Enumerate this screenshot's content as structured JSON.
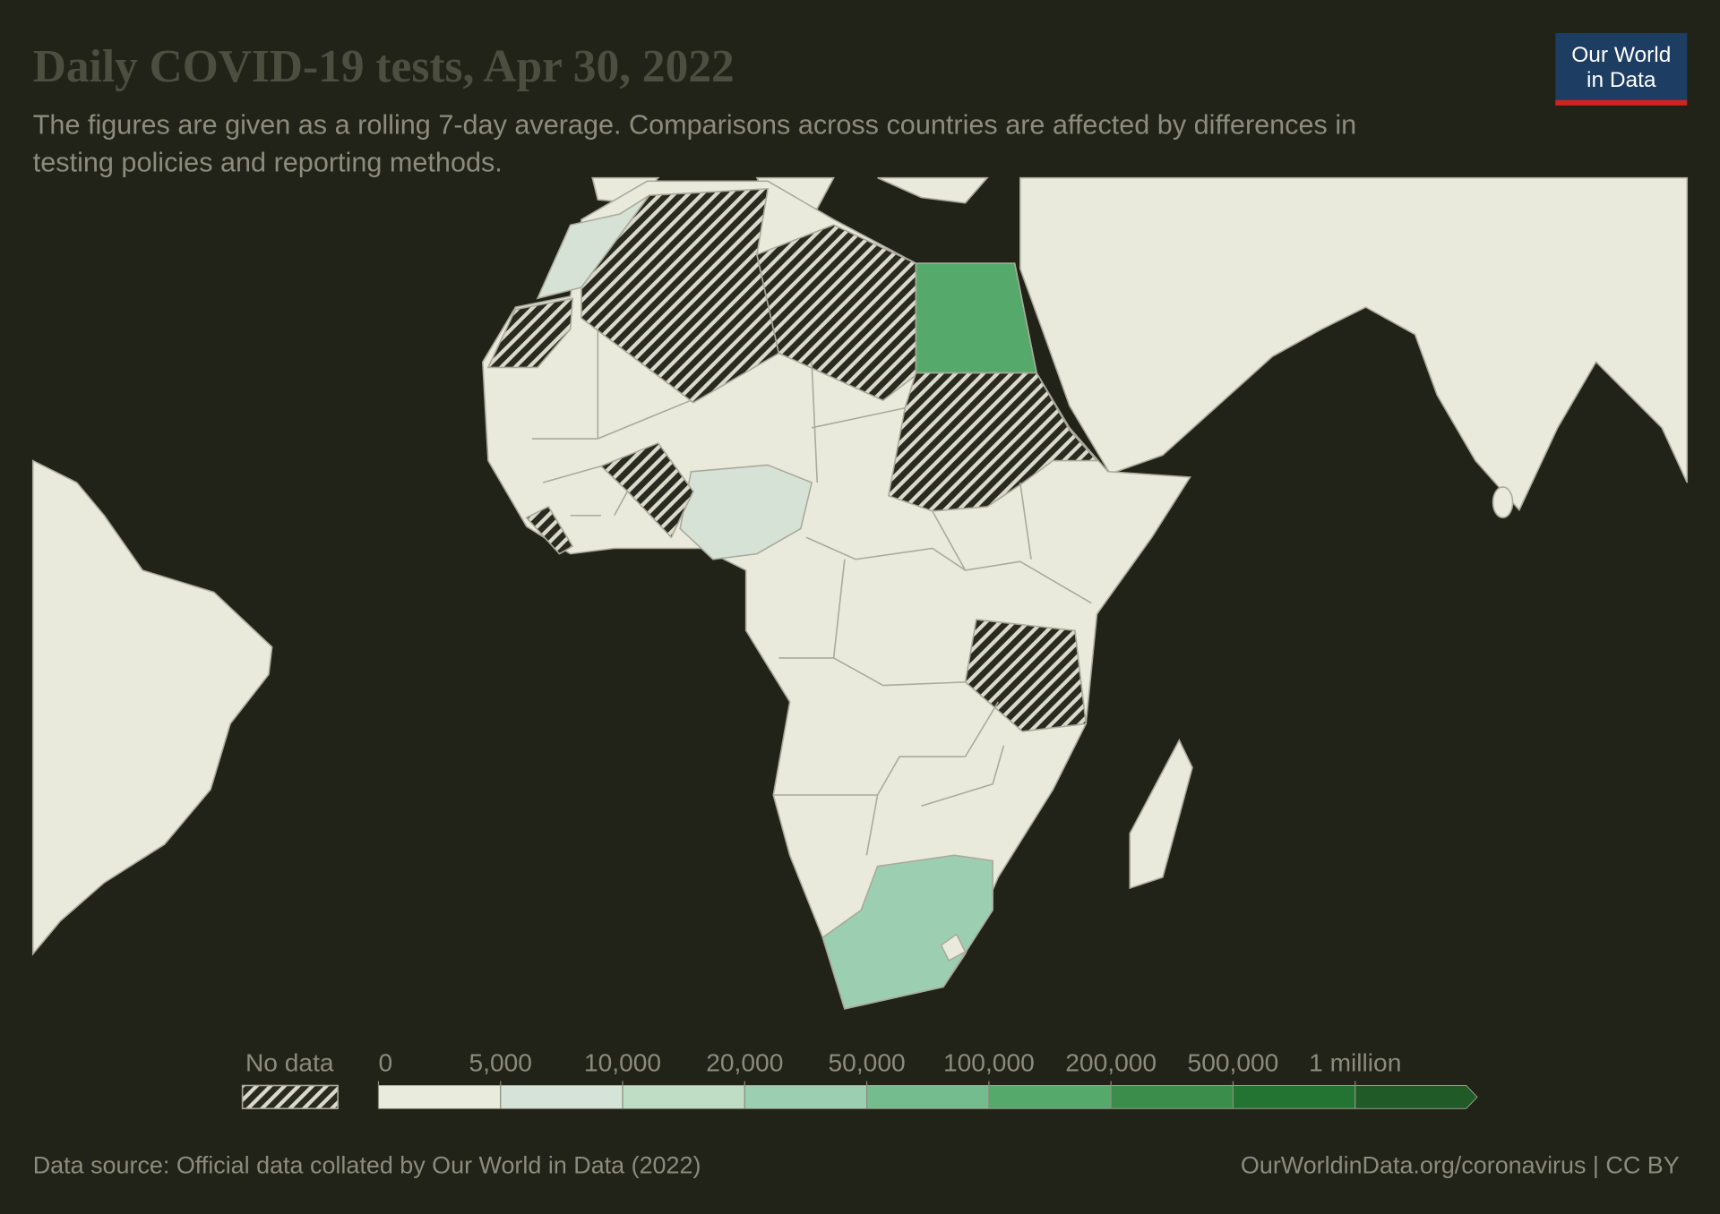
{
  "header": {
    "title": "Daily COVID-19 tests, Apr 30, 2022",
    "subtitle": [
      "The figures are given as a rolling 7-day average. Comparisons across countries are affected by differences in",
      "testing policies and reporting methods."
    ]
  },
  "logo": [
    "Our World",
    "in Data"
  ],
  "legend": {
    "no_data": "No data",
    "ticks": [
      0,
      {
        "value": 5000,
        "label": "5,000"
      },
      {
        "value": 10000,
        "label": "10,000"
      },
      {
        "value": 20000,
        "label": "20,000"
      },
      {
        "value": 50000,
        "label": "50,000"
      },
      {
        "value": 100000,
        "label": "100,000"
      },
      {
        "value": 200000,
        "label": "200,000"
      },
      {
        "value": 500000,
        "label": "500,000"
      },
      {
        "value": 1000000,
        "label": "1 million"
      }
    ],
    "colors": [
      "#e9ebdd",
      "#d6e3d8",
      "#bfdcc5",
      "#9ccfb1",
      "#74bb8d",
      "#55a96b",
      "#3a8d4a",
      "#237432",
      "#1f5a27"
    ]
  },
  "footer": {
    "source": "Data source: Official data collated by Our World in Data (2022)",
    "url": "OurWorldinData.org/coronavirus | CC BY"
  }
}
